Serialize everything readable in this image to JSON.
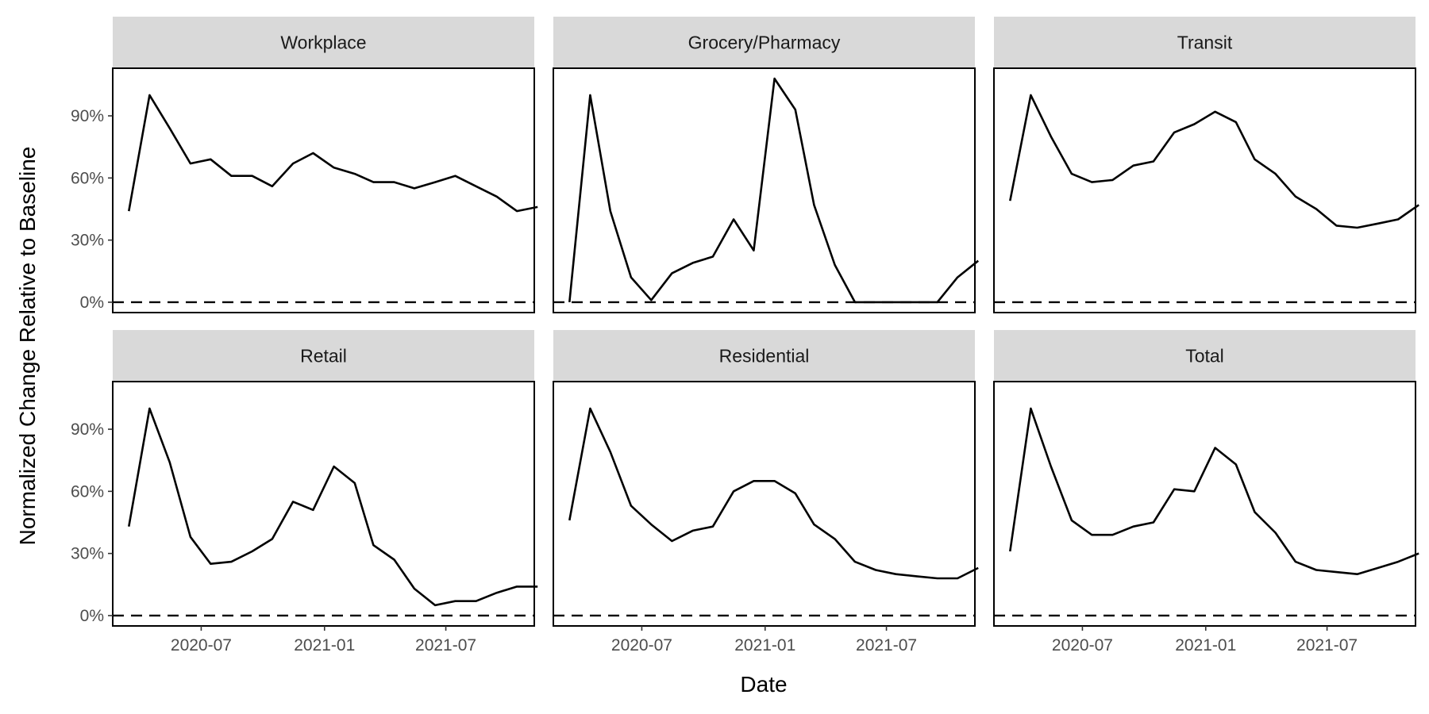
{
  "chart_data": {
    "type": "line",
    "layout": "facet-grid-2x3",
    "xlabel": "Date",
    "ylabel": "Normalized Change Relative to Baseline",
    "x_ticks": [
      "2020-07",
      "2021-01",
      "2021-07"
    ],
    "y_ticks": [
      "0%",
      "30%",
      "60%",
      "90%"
    ],
    "y_tick_values": [
      0,
      30,
      60,
      90
    ],
    "ylim": [
      -5,
      113
    ],
    "xlim": [
      "2020-02-20",
      "2021-11-10"
    ],
    "reference_line": {
      "y": 0,
      "style": "dashed"
    },
    "x": [
      "2020-03-15",
      "2020-04-15",
      "2020-05-15",
      "2020-06-15",
      "2020-07-15",
      "2020-08-15",
      "2020-09-15",
      "2020-10-15",
      "2020-11-15",
      "2020-12-15",
      "2021-01-15",
      "2021-02-15",
      "2021-03-15",
      "2021-04-15",
      "2021-05-15",
      "2021-06-15",
      "2021-07-15",
      "2021-08-15",
      "2021-09-15",
      "2021-10-15",
      "2021-11-15"
    ],
    "series": [
      {
        "name": "Workplace",
        "values": [
          44,
          100,
          84,
          67,
          69,
          61,
          61,
          56,
          67,
          72,
          65,
          62,
          58,
          58,
          55,
          58,
          61,
          56,
          51,
          44,
          46
        ]
      },
      {
        "name": "Grocery/Pharmacy",
        "values": [
          0,
          100,
          44,
          12,
          1,
          14,
          19,
          22,
          40,
          25,
          108,
          93,
          47,
          18,
          0,
          0,
          0,
          0,
          0,
          12,
          20
        ]
      },
      {
        "name": "Transit",
        "values": [
          49,
          100,
          80,
          62,
          58,
          59,
          66,
          68,
          82,
          86,
          92,
          87,
          69,
          62,
          51,
          45,
          37,
          36,
          38,
          40,
          47
        ]
      },
      {
        "name": "Retail",
        "values": [
          43,
          100,
          74,
          38,
          25,
          26,
          31,
          37,
          55,
          51,
          72,
          64,
          34,
          27,
          13,
          5,
          7,
          7,
          11,
          14,
          14
        ]
      },
      {
        "name": "Residential",
        "values": [
          46,
          100,
          79,
          53,
          44,
          36,
          41,
          43,
          60,
          65,
          65,
          59,
          44,
          37,
          26,
          22,
          20,
          19,
          18,
          18,
          23
        ]
      },
      {
        "name": "Total",
        "values": [
          31,
          100,
          72,
          46,
          39,
          39,
          43,
          45,
          61,
          60,
          81,
          73,
          50,
          40,
          26,
          22,
          21,
          20,
          23,
          26,
          30
        ]
      }
    ]
  }
}
